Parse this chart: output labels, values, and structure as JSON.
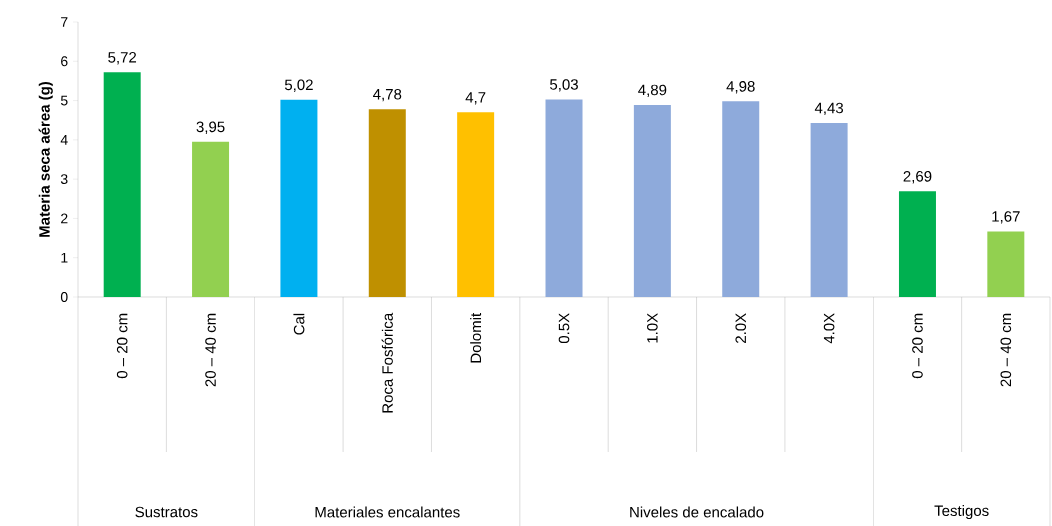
{
  "chart_data": {
    "type": "bar",
    "ylabel": "Materia seca aérea (g)",
    "categories": [
      "0 – 20 cm",
      "20 – 40 cm",
      "Cal",
      "Roca  Fosfórica",
      "Dolomit",
      "0.5X",
      "1.0X",
      "2.0X",
      "4.0X",
      "0 – 20 cm",
      "20 – 40 cm"
    ],
    "values": [
      5.72,
      3.95,
      5.02,
      4.78,
      4.7,
      5.03,
      4.89,
      4.98,
      4.43,
      2.69,
      1.67
    ],
    "value_labels": [
      "5,72",
      "3,95",
      "5,02",
      "4,78",
      "4,7",
      "5,03",
      "4,89",
      "4,98",
      "4,43",
      "2,69",
      "1,67"
    ],
    "colors": [
      "#00b050",
      "#92d050",
      "#00b0f0",
      "#bf9000",
      "#ffc000",
      "#8eaadb",
      "#8eaadb",
      "#8eaadb",
      "#8eaadb",
      "#00b050",
      "#92d050"
    ],
    "ylim": [
      0,
      7
    ],
    "yticks": [
      0,
      1,
      2,
      3,
      4,
      5,
      6,
      7
    ],
    "annotations": [
      "Sustratos",
      "Materiales encalantes",
      "Niveles de encalado",
      "Testigos"
    ],
    "grid": false
  }
}
